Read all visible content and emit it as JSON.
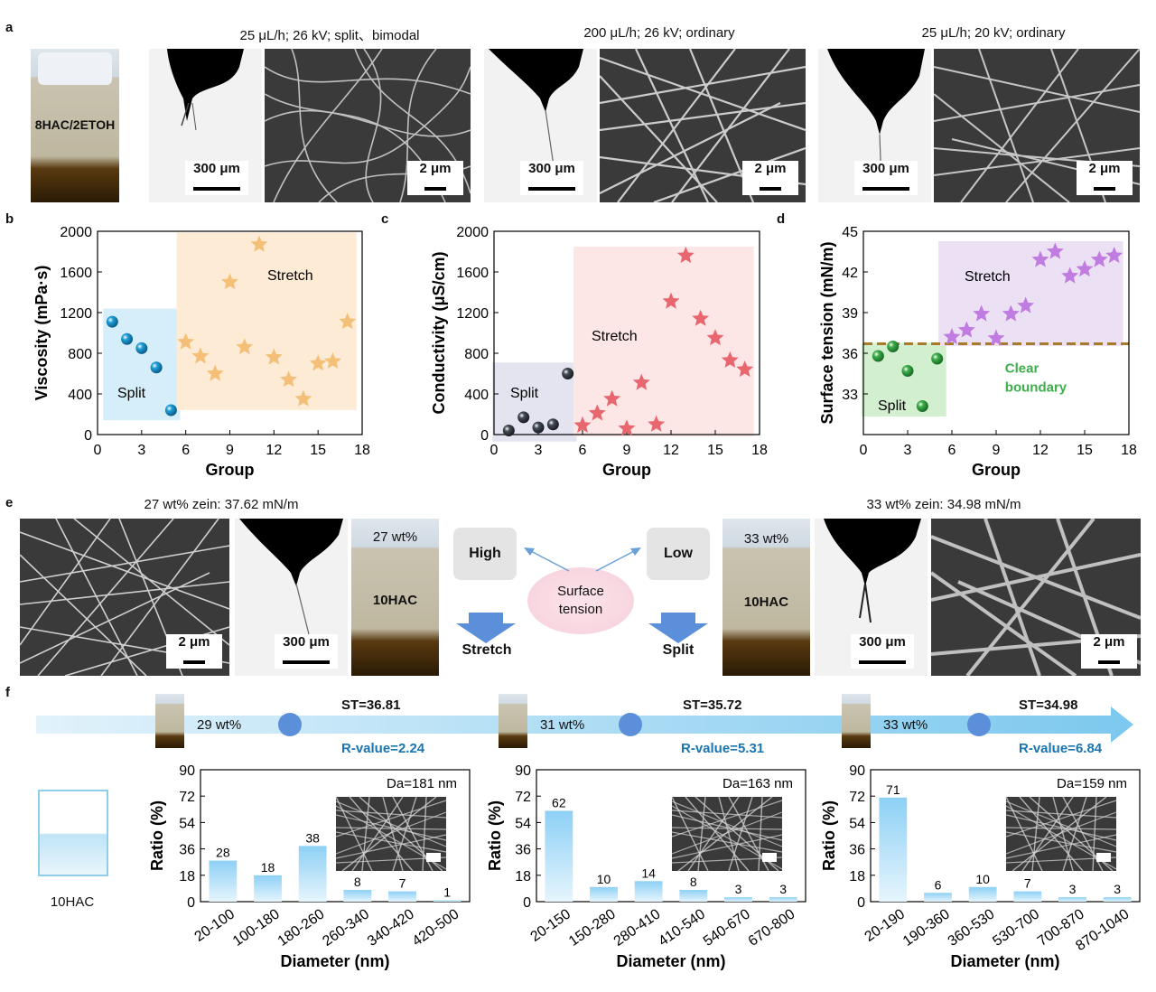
{
  "panel_labels": {
    "a": "a",
    "b": "b",
    "c": "c",
    "d": "d",
    "e": "e",
    "f": "f"
  },
  "panel_a": {
    "vial_label": "8HAC/2ETOH",
    "captions": [
      "25 μL/h; 26 kV; split、bimodal",
      "200 μL/h; 26 kV; ordinary",
      "25 μL/h; 20 kV; ordinary"
    ],
    "scale_drop": "300 μm",
    "scale_sem": "2 μm"
  },
  "panel_e": {
    "caption_left": "27 wt% zein: 37.62 mN/m",
    "caption_right": "33 wt% zein: 34.98 mN/m",
    "vial_left_top": "27 wt%",
    "vial_right_top": "33 wt%",
    "vial_label": "10HAC",
    "high": "High",
    "low": "Low",
    "surface_tension": "Surface\ntension",
    "stretch": "Stretch",
    "split": "Split",
    "scale_drop": "300 μm",
    "scale_sem": "2 μm"
  },
  "panel_f": {
    "concentrations": [
      "29 wt%",
      "31 wt%",
      "33 wt%"
    ],
    "st": [
      "ST=36.81",
      "ST=35.72",
      "ST=34.98"
    ],
    "r_values": [
      "R-value=2.24",
      "R-value=5.31",
      "R-value=6.84"
    ],
    "beaker_label": "10HAC"
  },
  "colors": {
    "blue_sphere": "#1f9fd8",
    "orange_star": "#f4c078",
    "red_star": "#e8666e",
    "dark_sphere": "#444b55",
    "green_sphere": "#3cae4a",
    "purple_star": "#c07ce0",
    "boundary": "#a67c2a",
    "bar_fill": "#a9d9f5",
    "arrow": "#5b8fd9"
  },
  "chart_data": [
    {
      "id": "b",
      "type": "scatter",
      "xlabel": "Group",
      "ylabel": "Viscosity (mPa·s)",
      "xlim": [
        0,
        18
      ],
      "ylim": [
        0,
        2000
      ],
      "xticks": [
        0,
        3,
        6,
        9,
        12,
        15,
        18
      ],
      "yticks": [
        0,
        400,
        800,
        1200,
        1600,
        2000
      ],
      "series": [
        {
          "name": "Split",
          "marker": "sphere",
          "x": [
            1,
            2,
            3,
            4,
            5
          ],
          "y": [
            1110,
            940,
            850,
            660,
            240
          ]
        },
        {
          "name": "Stretch",
          "marker": "star",
          "x": [
            6,
            7,
            8,
            9,
            10,
            11,
            12,
            13,
            14,
            15,
            16,
            17
          ],
          "y": [
            910,
            770,
            600,
            1500,
            860,
            1870,
            760,
            540,
            350,
            700,
            720,
            1110
          ]
        }
      ],
      "regions": [
        {
          "label": "Split",
          "x": [
            1,
            5
          ],
          "y": [
            230,
            1150
          ]
        },
        {
          "label": "Stretch",
          "x": [
            6,
            17
          ],
          "y": [
            330,
            1900
          ]
        }
      ]
    },
    {
      "id": "c",
      "type": "scatter",
      "xlabel": "Group",
      "ylabel": "Conductivity (μS/cm)",
      "xlim": [
        0,
        18
      ],
      "ylim": [
        0,
        2000
      ],
      "xticks": [
        0,
        3,
        6,
        9,
        12,
        15,
        18
      ],
      "yticks": [
        0,
        400,
        800,
        1200,
        1600,
        2000
      ],
      "series": [
        {
          "name": "Split",
          "marker": "sphere",
          "x": [
            1,
            2,
            3,
            4,
            5
          ],
          "y": [
            40,
            170,
            70,
            100,
            600
          ]
        },
        {
          "name": "Stretch",
          "marker": "star",
          "x": [
            6,
            7,
            8,
            9,
            10,
            11,
            12,
            13,
            14,
            15,
            16,
            17
          ],
          "y": [
            90,
            210,
            350,
            60,
            510,
            100,
            1310,
            1760,
            1140,
            950,
            730,
            640
          ]
        }
      ],
      "regions": [
        {
          "label": "Split",
          "x": [
            0.5,
            5
          ],
          "y": [
            20,
            620
          ]
        },
        {
          "label": "Stretch",
          "x": [
            6,
            17
          ],
          "y": [
            70,
            1760
          ]
        }
      ]
    },
    {
      "id": "d",
      "type": "scatter",
      "xlabel": "Group",
      "ylabel": "Surface tension (mN/m)",
      "xlim": [
        0,
        18
      ],
      "ylim": [
        30,
        45
      ],
      "xticks": [
        0,
        3,
        6,
        9,
        12,
        15,
        18
      ],
      "yticks": [
        33,
        36,
        39,
        42,
        45
      ],
      "series": [
        {
          "name": "Split",
          "marker": "sphere",
          "x": [
            1,
            2,
            3,
            4,
            5
          ],
          "y": [
            35.8,
            36.5,
            34.7,
            32.1,
            35.6
          ]
        },
        {
          "name": "Stretch",
          "marker": "star",
          "x": [
            6,
            7,
            8,
            9,
            10,
            11,
            12,
            13,
            14,
            15,
            16,
            17
          ],
          "y": [
            37.2,
            37.7,
            38.9,
            37.1,
            38.9,
            39.5,
            42.9,
            43.5,
            41.7,
            42.2,
            42.9,
            43.2
          ]
        }
      ],
      "regions": [
        {
          "label": "Split",
          "x": [
            0.5,
            5
          ],
          "y": [
            32,
            36.1
          ]
        },
        {
          "label": "Stretch",
          "x": [
            5.7,
            17
          ],
          "y": [
            37.2,
            43.6
          ]
        }
      ],
      "boundary": {
        "y": 36.7,
        "label": "Clear\nboundary"
      }
    },
    {
      "id": "f1",
      "type": "bar",
      "xlabel": "Diameter (nm)",
      "ylabel": "Ratio (%)",
      "ylim": [
        0,
        90
      ],
      "yticks": [
        0,
        18,
        36,
        54,
        72,
        90
      ],
      "annotation": "Da=181 nm",
      "categories": [
        "20-100",
        "100-180",
        "180-260",
        "260-340",
        "340-420",
        "420-500"
      ],
      "values": [
        28,
        18,
        38,
        8,
        7,
        1
      ]
    },
    {
      "id": "f2",
      "type": "bar",
      "xlabel": "Diameter (nm)",
      "ylabel": "Ratio (%)",
      "ylim": [
        0,
        90
      ],
      "yticks": [
        0,
        18,
        36,
        54,
        72,
        90
      ],
      "annotation": "Da=163 nm",
      "categories": [
        "20-150",
        "150-280",
        "280-410",
        "410-540",
        "540-670",
        "670-800"
      ],
      "values": [
        62,
        10,
        14,
        8,
        3,
        3
      ]
    },
    {
      "id": "f3",
      "type": "bar",
      "xlabel": "Diameter (nm)",
      "ylabel": "Ratio (%)",
      "ylim": [
        0,
        90
      ],
      "yticks": [
        0,
        18,
        36,
        54,
        72,
        90
      ],
      "annotation": "Da=159 nm",
      "categories": [
        "20-190",
        "190-360",
        "360-530",
        "530-700",
        "700-870",
        "870-1040"
      ],
      "values": [
        71,
        6,
        10,
        7,
        3,
        3
      ]
    }
  ]
}
